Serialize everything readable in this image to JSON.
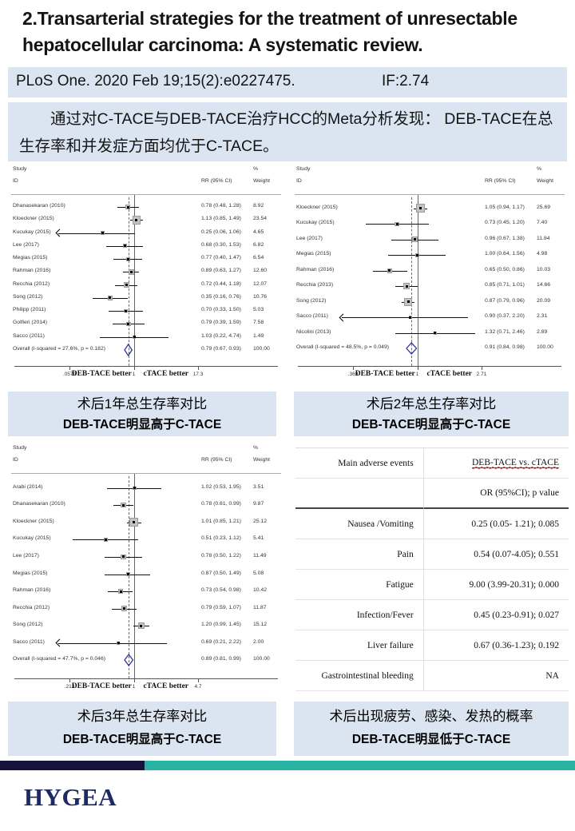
{
  "header": {
    "title": "2.Transarterial strategies for the treatment of unresectable hepatocellular carcinoma: A systematic review.",
    "journal": "PLoS One. 2020 Feb 19;15(2):e0227475.",
    "impact_factor": "IF:2.74"
  },
  "summary": "通过对C-TACE与DEB-TACE治疗HCC的Meta分析发现：  DEB-TACE在总生存率和并发症方面均优于C-TACE。",
  "captions": [
    {
      "line1": "术后1年总生存率对比",
      "line2": "DEB-TACE明显高于C-TACE"
    },
    {
      "line1": "术后2年总生存率对比",
      "line2": "DEB-TACE明显高于C-TACE"
    },
    {
      "line1": "术后3年总生存率对比",
      "line2": "DEB-TACE明显高于C-TACE"
    },
    {
      "line1": "术后出现疲劳、感染、发热的概率",
      "line2": "DEB-TACE明显低于C-TACE"
    }
  ],
  "footer": {
    "logo_text": "HYGEA"
  },
  "colors": {
    "panel_blue": "#dbe5f1",
    "navy_bar": "#15123c",
    "teal_bar": "#28b2a2",
    "diamond": "#3333a0",
    "ref_line_red": "#cc4444"
  },
  "chart_data": [
    {
      "type": "forest",
      "name": "1-year overall survival meta-analysis",
      "headers": {
        "study_line1": "Study",
        "study_line2": "ID",
        "pct": "%",
        "rr": "RR (95% CI)",
        "weight": "Weight"
      },
      "axis": {
        "min": 0.0579,
        "max": 17.3,
        "min_label": ".0579",
        "mid_label": "1",
        "max_label": "17.3",
        "left_text": "DEB-TACE better",
        "right_text": "cTACE better"
      },
      "studies": [
        {
          "id": "Dhanasekaran (2010)",
          "rr": 0.78,
          "lo": 0.48,
          "hi": 1.28,
          "ci_label": "0.78 (0.48, 1.28)",
          "weight": 8.92,
          "weight_label": "8.92"
        },
        {
          "id": "Kloeckner (2015)",
          "rr": 1.13,
          "lo": 0.85,
          "hi": 1.49,
          "ci_label": "1.13 (0.85, 1.49)",
          "weight": 23.54,
          "weight_label": "23.54"
        },
        {
          "id": "Kucukay (2015)",
          "rr": 0.25,
          "lo": 0.06,
          "hi": 1.06,
          "ci_label": "0.25 (0.06, 1.06)",
          "weight": 4.65,
          "weight_label": "4.65",
          "clip_lo": true
        },
        {
          "id": "Lee (2017)",
          "rr": 0.68,
          "lo": 0.3,
          "hi": 1.53,
          "ci_label": "0.68 (0.30, 1.53)",
          "weight": 6.82,
          "weight_label": "6.82"
        },
        {
          "id": "Megias (2015)",
          "rr": 0.77,
          "lo": 0.4,
          "hi": 1.47,
          "ci_label": "0.77 (0.40, 1.47)",
          "weight": 6.54,
          "weight_label": "6.54"
        },
        {
          "id": "Rahman (2016)",
          "rr": 0.89,
          "lo": 0.63,
          "hi": 1.27,
          "ci_label": "0.89 (0.63, 1.27)",
          "weight": 12.6,
          "weight_label": "12.60"
        },
        {
          "id": "Recchia (2012)",
          "rr": 0.72,
          "lo": 0.44,
          "hi": 1.18,
          "ci_label": "0.72 (0.44, 1.18)",
          "weight": 12.07,
          "weight_label": "12.07"
        },
        {
          "id": "Song (2012)",
          "rr": 0.35,
          "lo": 0.16,
          "hi": 0.76,
          "ci_label": "0.35 (0.16, 0.76)",
          "weight": 10.76,
          "weight_label": "10.76"
        },
        {
          "id": "Philipp (2011)",
          "rr": 0.7,
          "lo": 0.33,
          "hi": 1.5,
          "ci_label": "0.70 (0.33, 1.50)",
          "weight": 5.03,
          "weight_label": "5.03"
        },
        {
          "id": "Golfieri (2014)",
          "rr": 0.79,
          "lo": 0.39,
          "hi": 1.59,
          "ci_label": "0.79 (0.39, 1.59)",
          "weight": 7.58,
          "weight_label": "7.58"
        },
        {
          "id": "Sacco (2011)",
          "rr": 1.03,
          "lo": 0.22,
          "hi": 4.74,
          "ci_label": "1.03 (0.22, 4.74)",
          "weight": 1.49,
          "weight_label": "1.49"
        }
      ],
      "overall": {
        "id": "Overall  (I-squared = 27.6%, p = 0.182)",
        "rr": 0.79,
        "lo": 0.67,
        "hi": 0.93,
        "ci_label": "0.79 (0.67, 0.93)",
        "weight_label": "100.00"
      }
    },
    {
      "type": "forest",
      "name": "2-year overall survival meta-analysis",
      "headers": {
        "study_line1": "Study",
        "study_line2": "ID",
        "pct": "%",
        "rr": "RR (95% CI)",
        "weight": "Weight"
      },
      "axis": {
        "min": 0.369,
        "max": 2.71,
        "min_label": ".369",
        "mid_label": "1",
        "max_label": "2.71",
        "left_text": "DEB-TACE better",
        "right_text": "cTACE better"
      },
      "studies": [
        {
          "id": "Kloeckner (2015)",
          "rr": 1.05,
          "lo": 0.94,
          "hi": 1.17,
          "ci_label": "1.05 (0.94, 1.17)",
          "weight": 25.69,
          "weight_label": "25.69"
        },
        {
          "id": "Kucukay (2015)",
          "rr": 0.73,
          "lo": 0.45,
          "hi": 1.2,
          "ci_label": "0.73 (0.45, 1.20)",
          "weight": 7.4,
          "weight_label": "7.40"
        },
        {
          "id": "Lee (2017)",
          "rr": 0.96,
          "lo": 0.67,
          "hi": 1.38,
          "ci_label": "0.96 (0.67, 1.38)",
          "weight": 11.84,
          "weight_label": "11.84"
        },
        {
          "id": "Megias (2015)",
          "rr": 1.0,
          "lo": 0.64,
          "hi": 1.56,
          "ci_label": "1.00 (0.64, 1.56)",
          "weight": 4.98,
          "weight_label": "4.98"
        },
        {
          "id": "Rahman (2016)",
          "rr": 0.65,
          "lo": 0.5,
          "hi": 0.86,
          "ci_label": "0.65 (0.50, 0.86)",
          "weight": 10.03,
          "weight_label": "10.03"
        },
        {
          "id": "Recchia (2013)",
          "rr": 0.85,
          "lo": 0.71,
          "hi": 1.01,
          "ci_label": "0.85 (0.71, 1.01)",
          "weight": 14.66,
          "weight_label": "14.66"
        },
        {
          "id": "Song (2012)",
          "rr": 0.87,
          "lo": 0.79,
          "hi": 0.96,
          "ci_label": "0.87 (0.79, 0.96)",
          "weight": 20.09,
          "weight_label": "20.09"
        },
        {
          "id": "Sacco (2011)",
          "rr": 0.9,
          "lo": 0.37,
          "hi": 2.2,
          "ci_label": "0.90 (0.37, 2.20)",
          "weight": 2.31,
          "weight_label": "2.31",
          "clip_lo": true
        },
        {
          "id": "Nicolini (2013)",
          "rr": 1.32,
          "lo": 0.71,
          "hi": 2.46,
          "ci_label": "1.32 (0.71, 2.46)",
          "weight": 2.89,
          "weight_label": "2.89"
        }
      ],
      "overall": {
        "id": "Overall  (I-squared = 48.5%, p = 0.049)",
        "rr": 0.91,
        "lo": 0.84,
        "hi": 0.98,
        "ci_label": "0.91 (0.84, 0.98)",
        "weight_label": "100.00"
      }
    },
    {
      "type": "forest",
      "name": "3-year overall survival meta-analysis",
      "headers": {
        "study_line1": "Study",
        "study_line2": "ID",
        "pct": "%",
        "rr": "RR (95% CI)",
        "weight": "Weight"
      },
      "axis": {
        "min": 0.213,
        "max": 4.7,
        "min_label": ".213",
        "mid_label": "1",
        "max_label": "4.7",
        "left_text": "DEB-TACE better",
        "right_text": "cTACE better"
      },
      "studies": [
        {
          "id": "Arabi (2014)",
          "rr": 1.02,
          "lo": 0.53,
          "hi": 1.95,
          "ci_label": "1.02 (0.53, 1.95)",
          "weight": 3.51,
          "weight_label": "3.51"
        },
        {
          "id": "Dhanasekaran (2010)",
          "rr": 0.78,
          "lo": 0.61,
          "hi": 0.99,
          "ci_label": "0.78 (0.61, 0.99)",
          "weight": 9.87,
          "weight_label": "9.87"
        },
        {
          "id": "Kloeckner (2015)",
          "rr": 1.01,
          "lo": 0.85,
          "hi": 1.21,
          "ci_label": "1.01 (0.85, 1.21)",
          "weight": 25.12,
          "weight_label": "25.12"
        },
        {
          "id": "Kucukay (2015)",
          "rr": 0.51,
          "lo": 0.23,
          "hi": 1.12,
          "ci_label": "0.51 (0.23, 1.12)",
          "weight": 5.41,
          "weight_label": "5.41"
        },
        {
          "id": "Lee (2017)",
          "rr": 0.78,
          "lo": 0.5,
          "hi": 1.22,
          "ci_label": "0.78 (0.50, 1.22)",
          "weight": 11.49,
          "weight_label": "11.49"
        },
        {
          "id": "Megias (2015)",
          "rr": 0.87,
          "lo": 0.5,
          "hi": 1.49,
          "ci_label": "0.87 (0.50, 1.49)",
          "weight": 5.08,
          "weight_label": "5.08"
        },
        {
          "id": "Rahman (2016)",
          "rr": 0.73,
          "lo": 0.54,
          "hi": 0.98,
          "ci_label": "0.73 (0.54, 0.98)",
          "weight": 10.42,
          "weight_label": "10.42"
        },
        {
          "id": "Recchia (2012)",
          "rr": 0.79,
          "lo": 0.59,
          "hi": 1.07,
          "ci_label": "0.79 (0.59, 1.07)",
          "weight": 11.87,
          "weight_label": "11.87"
        },
        {
          "id": "Song (2012)",
          "rr": 1.2,
          "lo": 0.99,
          "hi": 1.45,
          "ci_label": "1.20 (0.99, 1.45)",
          "weight": 15.12,
          "weight_label": "15.12"
        },
        {
          "id": "Sacco (2011)",
          "rr": 0.69,
          "lo": 0.21,
          "hi": 2.22,
          "ci_label": "0.69 (0.21, 2.22)",
          "weight": 2.0,
          "weight_label": "2.00",
          "clip_lo": true
        }
      ],
      "overall": {
        "id": "Overall  (I-squared = 47.7%, p = 0.046)",
        "rr": 0.89,
        "lo": 0.81,
        "hi": 0.99,
        "ci_label": "0.89 (0.81, 0.99)",
        "weight_label": "100.00"
      }
    },
    {
      "type": "table",
      "name": "main adverse events",
      "header": {
        "col1": "Main adverse events",
        "col2": "DEB-TACE vs. cTACE",
        "subcol2": "OR (95%CI); p value"
      },
      "rows": [
        {
          "event": "Nausea /Vomiting",
          "value": "0.25 (0.05- 1.21); 0.085"
        },
        {
          "event": "Pain",
          "value": "0.54 (0.07-4.05); 0.551"
        },
        {
          "event": "Fatigue",
          "value": "9.00 (3.99-20.31); 0.000"
        },
        {
          "event": "Infection/Fever",
          "value": "0.45 (0.23-0.91); 0.027"
        },
        {
          "event": "Liver failure",
          "value": "0.67 (0.36-1.23); 0.192"
        },
        {
          "event": "Gastrointestinal bleeding",
          "value": "NA"
        }
      ]
    }
  ]
}
